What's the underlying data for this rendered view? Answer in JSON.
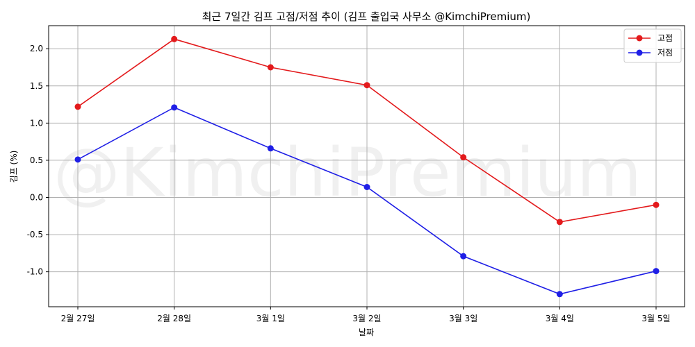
{
  "chart_data": {
    "type": "line",
    "title": "최근 7일간 김프 고점/저점 추이 (김프 출입국 사무소 @KimchiPremium)",
    "xlabel": "날짜",
    "ylabel": "김프 (%)",
    "categories": [
      "2월 27일",
      "2월 28일",
      "3월 1일",
      "3월 2일",
      "3월 3일",
      "3월 4일",
      "3월 5일"
    ],
    "series": [
      {
        "name": "고점",
        "color": "#e31a1c",
        "values": [
          1.22,
          2.13,
          1.75,
          1.51,
          0.54,
          -0.33,
          -0.1
        ]
      },
      {
        "name": "저점",
        "color": "#1f1fe6",
        "values": [
          0.51,
          1.21,
          0.66,
          0.14,
          -0.79,
          -1.3,
          -0.99
        ]
      }
    ],
    "ylim": [
      -1.47,
      2.31
    ],
    "yticks": [
      -1.0,
      -0.5,
      0.0,
      0.5,
      1.0,
      1.5,
      2.0
    ],
    "ytick_labels": [
      "-1.0",
      "-0.5",
      "0.0",
      "0.5",
      "1.0",
      "1.5",
      "2.0"
    ],
    "grid": true,
    "legend_position": "top-right",
    "watermark": "@KimchiPremium"
  }
}
